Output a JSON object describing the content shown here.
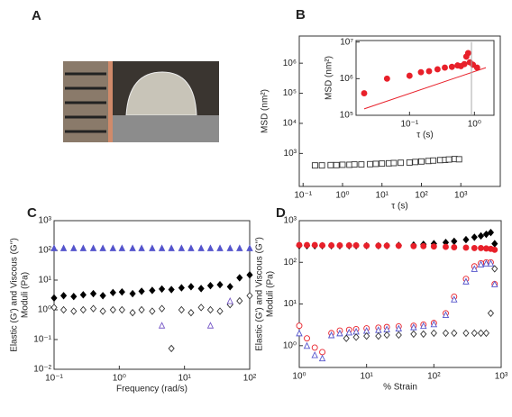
{
  "image_panel": {
    "label": "A"
  },
  "chart_data": [
    {
      "type": "scatter",
      "panel_label": "B",
      "xlabel": "τ (s)",
      "ylabel": [
        "MSD (nm²)"
      ],
      "log_x": true,
      "log_y": true,
      "xlim": [
        0.08,
        10000
      ],
      "ylim": [
        80,
        8000000
      ],
      "xticks": [
        {
          "value": 0.1,
          "label": "10⁻¹"
        },
        {
          "value": 1,
          "label": "10⁰"
        },
        {
          "value": 10,
          "label": "10¹"
        },
        {
          "value": 100,
          "label": "10²"
        },
        {
          "value": 1000,
          "label": "10³"
        }
      ],
      "yticks": [
        {
          "value": 1000,
          "label": "10³"
        },
        {
          "value": 10000,
          "label": "10⁴"
        },
        {
          "value": 100000,
          "label": "10⁵"
        },
        {
          "value": 1000000,
          "label": "10⁶"
        }
      ],
      "series": [
        {
          "color": "#333333",
          "marker": "square",
          "filled": false,
          "x": [
            0.2,
            0.3,
            0.5,
            0.7,
            1,
            1.5,
            2,
            3,
            5,
            7,
            10,
            15,
            20,
            30,
            50,
            70,
            100,
            150,
            200,
            300,
            400,
            500,
            700,
            900
          ],
          "values": [
            400,
            400,
            410,
            410,
            420,
            420,
            430,
            430,
            440,
            450,
            460,
            470,
            480,
            490,
            500,
            520,
            540,
            560,
            580,
            600,
            610,
            630,
            650,
            640
          ]
        }
      ]
    },
    {
      "type": "scatter",
      "inset": true,
      "xlabel": "τ (s)",
      "ylabel": [
        "MSD (nm²)"
      ],
      "log_x": true,
      "log_y": true,
      "xlim": [
        0.015,
        2
      ],
      "ylim": [
        100000,
        11000000
      ],
      "xticks": [
        {
          "value": 0.1,
          "label": "10⁻¹"
        },
        {
          "value": 1,
          "label": "10⁰"
        }
      ],
      "yticks": [
        {
          "value": 100000,
          "label": "10⁵"
        },
        {
          "value": 1000000,
          "label": "10⁶"
        },
        {
          "value": 10000000,
          "label": "10⁷"
        }
      ],
      "series": [
        {
          "color": "#e8202a",
          "marker": "circle",
          "filled": true,
          "x": [
            0.02,
            0.045,
            0.1,
            0.15,
            0.2,
            0.27,
            0.35,
            0.45,
            0.55,
            0.62,
            0.7,
            0.75,
            0.8,
            0.85,
            0.95,
            1.1
          ],
          "values": [
            400000,
            1000000,
            1200000,
            1500000,
            1600000,
            1800000,
            2000000,
            2100000,
            2300000,
            2200000,
            2500000,
            4000000,
            5000000,
            2800000,
            2400000,
            2000000
          ]
        },
        {
          "color": "#e8202a",
          "marker": "line",
          "x": [
            0.02,
            1.5
          ],
          "values": [
            150000,
            2000000
          ]
        },
        {
          "color": "#aaaaaa",
          "marker": "line",
          "x": [
            0.9,
            0.9
          ],
          "values": [
            100000,
            10000000
          ]
        }
      ]
    },
    {
      "type": "scatter",
      "panel_label": "C",
      "xlabel": "Frequency (rad/s)",
      "ylabel": [
        "Elastic (G') and Viscous (G'')",
        "Moduli (Pa)"
      ],
      "log_x": true,
      "log_y": true,
      "xlim": [
        0.1,
        100
      ],
      "ylim": [
        0.01,
        1000
      ],
      "xticks": [
        {
          "value": 0.1,
          "label": "10⁻¹"
        },
        {
          "value": 1,
          "label": "10⁰"
        },
        {
          "value": 10,
          "label": "10¹"
        },
        {
          "value": 100,
          "label": "10²"
        }
      ],
      "yticks": [
        {
          "value": 0.01,
          "label": "10⁻²"
        },
        {
          "value": 0.1,
          "label": "10⁻¹"
        },
        {
          "value": 1,
          "label": "10⁰"
        },
        {
          "value": 10,
          "label": "10¹"
        },
        {
          "value": 100,
          "label": "10²"
        },
        {
          "value": 1000,
          "label": "10³"
        }
      ],
      "series": [
        {
          "color": "#5555cc",
          "marker": "triangle",
          "filled": true,
          "x": [
            0.1,
            0.14,
            0.2,
            0.28,
            0.4,
            0.56,
            0.8,
            1.1,
            1.6,
            2.2,
            3.2,
            4.5,
            6.3,
            9,
            12.6,
            18,
            25,
            35,
            50,
            70,
            100
          ],
          "values": [
            120,
            120,
            120,
            120,
            120,
            120,
            120,
            120,
            120,
            120,
            120,
            120,
            120,
            120,
            120,
            120,
            120,
            120,
            120,
            120,
            120
          ]
        },
        {
          "color": "#000000",
          "marker": "diamond",
          "filled": true,
          "x": [
            0.1,
            0.14,
            0.2,
            0.28,
            0.4,
            0.56,
            0.8,
            1.1,
            1.6,
            2.2,
            3.2,
            4.5,
            6.3,
            9,
            12.6,
            18,
            25,
            35,
            50,
            70,
            100
          ],
          "values": [
            2.5,
            3,
            2.8,
            3.2,
            3.5,
            3,
            3.8,
            4,
            3.5,
            4.2,
            4.5,
            5,
            4.8,
            5.5,
            6,
            5.2,
            6.5,
            7,
            6,
            12,
            15
          ]
        },
        {
          "color": "#333333",
          "marker": "diamond",
          "filled": false,
          "x": [
            0.1,
            0.14,
            0.2,
            0.28,
            0.4,
            0.56,
            0.8,
            1.1,
            1.6,
            2.2,
            3.2,
            4.5,
            6.3,
            9,
            12.6,
            18,
            25,
            35,
            50,
            70,
            100
          ],
          "values": [
            1.2,
            1,
            0.9,
            1,
            1.1,
            0.9,
            1,
            1,
            0.8,
            1,
            0.9,
            1.1,
            0.05,
            1,
            0.8,
            1.2,
            1,
            0.9,
            1.5,
            2,
            3
          ]
        },
        {
          "color": "#7a5cc8",
          "marker": "triangle",
          "filled": false,
          "x": [
            4.5,
            25,
            50
          ],
          "values": [
            0.3,
            0.3,
            2
          ]
        }
      ]
    },
    {
      "type": "scatter",
      "panel_label": "D",
      "xlabel": "% Strain",
      "ylabel": [
        "Elastic (G') and Viscous (G'')",
        "Moduli (Pa)"
      ],
      "log_x": true,
      "log_y": true,
      "xlim": [
        1,
        1000
      ],
      "ylim": [
        0.3,
        1000
      ],
      "xticks": [
        {
          "value": 1,
          "label": "10⁰"
        },
        {
          "value": 10,
          "label": "10¹"
        },
        {
          "value": 100,
          "label": "10²"
        },
        {
          "value": 1000,
          "label": "10³"
        }
      ],
      "yticks": [
        {
          "value": 1,
          "label": "10⁰"
        },
        {
          "value": 10,
          "label": "10¹"
        },
        {
          "value": 100,
          "label": "10²"
        },
        {
          "value": 1000,
          "label": "10³"
        }
      ],
      "series": [
        {
          "color": "#000000",
          "marker": "diamond",
          "filled": true,
          "x": [
            1,
            1.3,
            1.7,
            2.2,
            3,
            4,
            5.5,
            7,
            10,
            15,
            20,
            30,
            50,
            70,
            100,
            150,
            200,
            300,
            400,
            500,
            600,
            700,
            800
          ],
          "values": [
            250,
            250,
            250,
            250,
            250,
            250,
            250,
            250,
            250,
            250,
            250,
            255,
            260,
            270,
            280,
            300,
            320,
            350,
            400,
            430,
            470,
            520,
            280
          ]
        },
        {
          "color": "#e8202a",
          "marker": "circle",
          "filled": true,
          "x": [
            1,
            1.3,
            1.7,
            2.2,
            3,
            4,
            5.5,
            7,
            10,
            15,
            20,
            30,
            50,
            70,
            100,
            150,
            200,
            300,
            400,
            500,
            600,
            700,
            800
          ],
          "values": [
            260,
            260,
            260,
            255,
            255,
            255,
            255,
            255,
            250,
            250,
            250,
            250,
            245,
            245,
            240,
            235,
            230,
            225,
            220,
            220,
            215,
            210,
            200
          ]
        },
        {
          "color": "#e8202a",
          "marker": "circle",
          "filled": false,
          "x": [
            1,
            1.3,
            1.7,
            2.2,
            3,
            4,
            5.5,
            7,
            10,
            15,
            20,
            30,
            50,
            70,
            100,
            150,
            200,
            300,
            400,
            500,
            600,
            700,
            800
          ],
          "values": [
            3,
            1.5,
            0.9,
            0.7,
            2,
            2.3,
            2.4,
            2.5,
            2.6,
            2.7,
            2.8,
            2.9,
            3,
            3.2,
            3.5,
            6,
            15,
            40,
            80,
            95,
            100,
            100,
            30
          ]
        },
        {
          "color": "#5555cc",
          "marker": "triangle",
          "filled": false,
          "x": [
            1,
            1.3,
            1.7,
            2.2,
            3,
            4,
            5.5,
            7,
            10,
            15,
            20,
            30,
            50,
            70,
            100,
            150,
            200,
            300,
            400,
            500,
            600,
            700,
            800
          ],
          "values": [
            2,
            1,
            0.6,
            0.5,
            1.8,
            2,
            2.1,
            2.2,
            2.3,
            2.4,
            2.5,
            2.6,
            2.8,
            3,
            3.3,
            5.5,
            13,
            35,
            70,
            90,
            95,
            95,
            30
          ]
        },
        {
          "color": "#333333",
          "marker": "diamond",
          "filled": false,
          "x": [
            5,
            7,
            10,
            15,
            20,
            30,
            50,
            70,
            100,
            150,
            200,
            300,
            400,
            500,
            600,
            700,
            800
          ],
          "values": [
            1.5,
            1.6,
            1.7,
            1.7,
            1.8,
            1.8,
            1.9,
            1.9,
            2,
            2,
            2,
            2,
            2,
            2,
            2,
            6,
            70
          ]
        }
      ]
    }
  ]
}
